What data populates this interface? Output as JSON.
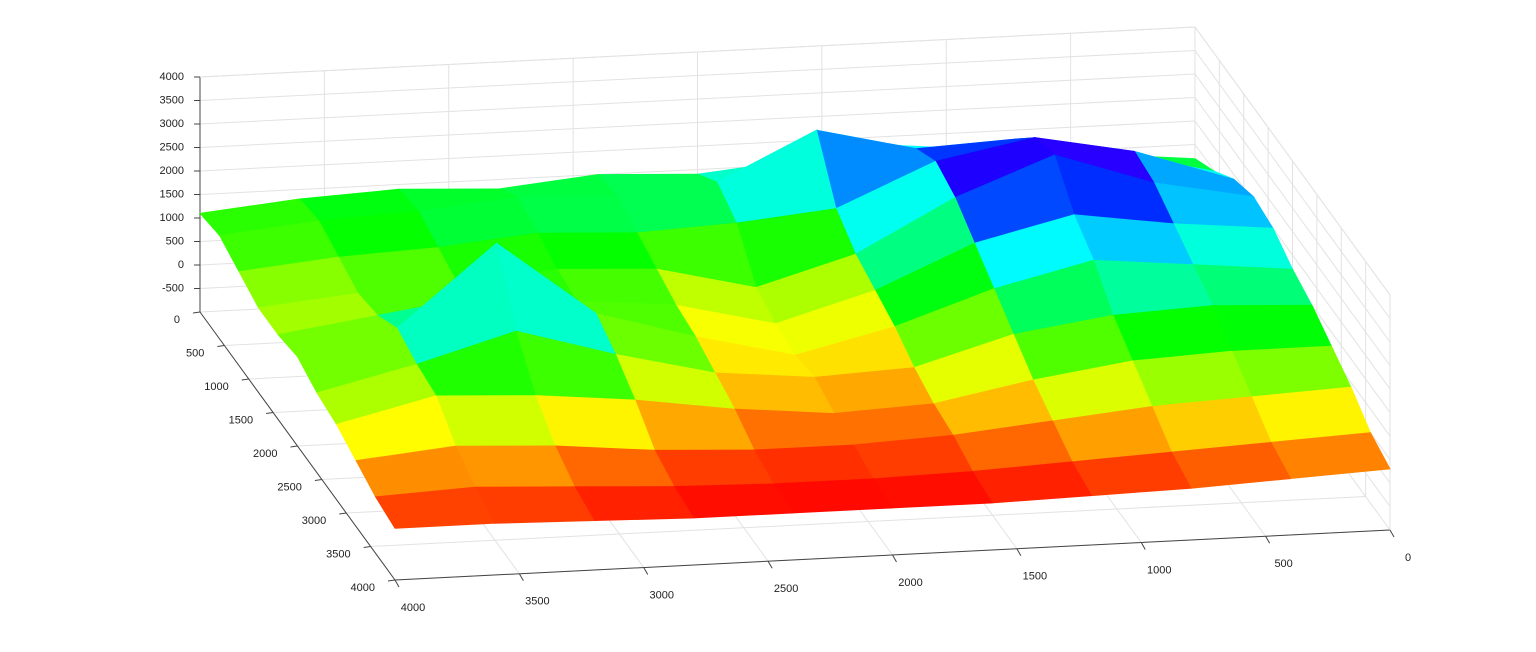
{
  "chart_data": {
    "type": "surface",
    "x": [
      0,
      400,
      800,
      1200,
      1600,
      2000,
      2400,
      2800,
      3200,
      3600,
      4000
    ],
    "y": [
      0,
      400,
      800,
      1200,
      1600,
      2000,
      2400,
      2800,
      3200,
      3600,
      4000
    ],
    "z": [
      [
        1200,
        1400,
        1600,
        1800,
        1600,
        1400,
        1500,
        1300,
        1400,
        1300,
        1100
      ],
      [
        1500,
        2000,
        2400,
        2300,
        2800,
        1800,
        1600,
        1700,
        1500,
        1400,
        1200
      ],
      [
        1900,
        2600,
        3000,
        2600,
        1700,
        1500,
        1400,
        1500,
        1300,
        1200,
        1000
      ],
      [
        2100,
        2500,
        3200,
        2400,
        1300,
        700,
        1200,
        1300,
        1100,
        1000,
        800
      ],
      [
        2000,
        2200,
        2500,
        2000,
        1100,
        500,
        1000,
        1200,
        1400,
        1100,
        800
      ],
      [
        1700,
        1900,
        2100,
        1600,
        900,
        400,
        900,
        1500,
        3100,
        1400,
        900
      ],
      [
        1500,
        1600,
        1500,
        1200,
        600,
        500,
        700,
        1200,
        1800,
        1200,
        700
      ],
      [
        1200,
        1200,
        1100,
        800,
        400,
        300,
        500,
        800,
        1000,
        1100,
        600
      ],
      [
        900,
        800,
        700,
        500,
        300,
        200,
        200,
        300,
        500,
        600,
        400
      ],
      [
        500,
        400,
        300,
        200,
        100,
        50,
        50,
        100,
        200,
        300,
        200
      ],
      [
        300,
        200,
        100,
        50,
        0,
        0,
        0,
        0,
        50,
        100,
        100
      ]
    ],
    "xlim": [
      0,
      4000
    ],
    "ylim": [
      0,
      4000
    ],
    "zlim": [
      -1000,
      4000
    ],
    "xticks": [
      0,
      500,
      1000,
      1500,
      2000,
      2500,
      3000,
      3500,
      4000
    ],
    "yticks": [
      0,
      500,
      1000,
      1500,
      2000,
      2500,
      3000,
      3500,
      4000
    ],
    "zticks": [
      -500,
      0,
      500,
      1000,
      1500,
      2000,
      2500,
      3000,
      3500,
      4000
    ],
    "colormap": [
      "#ff0000",
      "#ffff00",
      "#00ff00",
      "#00ffff",
      "#0000ff",
      "#ff00ff"
    ],
    "clim": [
      0,
      3400
    ],
    "grid": true
  }
}
